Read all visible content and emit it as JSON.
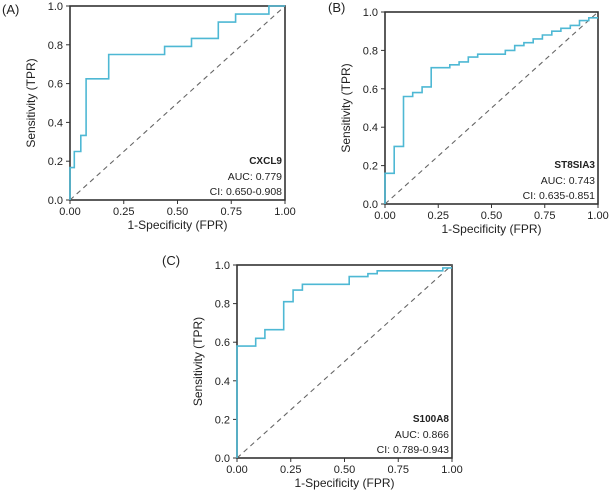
{
  "chart_data": [
    {
      "type": "line",
      "panel_label": "(A)",
      "title": "",
      "xlabel": "1-Specificity (FPR)",
      "ylabel": "Sensitivity (TPR)",
      "xlim": [
        0,
        1
      ],
      "ylim": [
        0,
        1
      ],
      "xticks": [
        "0.00",
        "0.25",
        "0.50",
        "0.75",
        "1.00"
      ],
      "yticks": [
        "0.0",
        "0.2",
        "0.4",
        "0.6",
        "0.8",
        "1.0"
      ],
      "grid": false,
      "reference_line": "diagonal dashed",
      "annotation": {
        "marker": "CXCL9",
        "auc": "AUC: 0.779",
        "ci": "CI: 0.650-0.908",
        "placement": "bottom-right"
      },
      "series": [
        {
          "name": "CXCL9",
          "color": "#4eb8d4",
          "x": [
            0.0,
            0.0,
            0.02,
            0.02,
            0.05,
            0.05,
            0.075,
            0.075,
            0.18,
            0.18,
            0.44,
            0.44,
            0.565,
            0.565,
            0.69,
            0.69,
            0.77,
            0.77,
            0.925,
            0.925,
            1.0
          ],
          "y": [
            0.0,
            0.167,
            0.167,
            0.25,
            0.25,
            0.333,
            0.333,
            0.625,
            0.625,
            0.75,
            0.75,
            0.792,
            0.792,
            0.833,
            0.833,
            0.917,
            0.917,
            0.958,
            0.958,
            1.0,
            1.0
          ]
        }
      ]
    },
    {
      "type": "line",
      "panel_label": "(B)",
      "title": "",
      "xlabel": "1-Specificity (FPR)",
      "ylabel": "Sensitivity (TPR)",
      "xlim": [
        0,
        1
      ],
      "ylim": [
        0,
        1
      ],
      "xticks": [
        "0.00",
        "0.25",
        "0.50",
        "0.75",
        "1.00"
      ],
      "yticks": [
        "0.0",
        "0.2",
        "0.4",
        "0.6",
        "0.8",
        "1.0"
      ],
      "grid": false,
      "reference_line": "diagonal dashed",
      "annotation": {
        "marker": "ST8SIA3",
        "auc": "AUC: 0.743",
        "ci": "CI: 0.635-0.851",
        "placement": "bottom-right"
      },
      "series": [
        {
          "name": "ST8SIA3",
          "color": "#4eb8d4",
          "x": [
            0.0,
            0.0,
            0.043,
            0.043,
            0.087,
            0.087,
            0.13,
            0.13,
            0.174,
            0.174,
            0.217,
            0.217,
            0.304,
            0.304,
            0.348,
            0.348,
            0.391,
            0.391,
            0.435,
            0.435,
            0.565,
            0.565,
            0.609,
            0.609,
            0.652,
            0.652,
            0.696,
            0.696,
            0.739,
            0.739,
            0.783,
            0.783,
            0.826,
            0.826,
            0.87,
            0.87,
            0.913,
            0.913,
            0.957,
            0.957,
            1.0
          ],
          "y": [
            0.0,
            0.16,
            0.16,
            0.3,
            0.3,
            0.56,
            0.56,
            0.58,
            0.58,
            0.61,
            0.61,
            0.71,
            0.71,
            0.725,
            0.725,
            0.74,
            0.74,
            0.765,
            0.765,
            0.78,
            0.78,
            0.8,
            0.8,
            0.825,
            0.825,
            0.84,
            0.84,
            0.86,
            0.86,
            0.88,
            0.88,
            0.9,
            0.9,
            0.915,
            0.915,
            0.93,
            0.93,
            0.955,
            0.955,
            0.97,
            0.97
          ]
        }
      ]
    },
    {
      "type": "line",
      "panel_label": "(C)",
      "title": "",
      "xlabel": "1-Specificity (FPR)",
      "ylabel": "Sensitivity (TPR)",
      "xlim": [
        0,
        1
      ],
      "ylim": [
        0,
        1
      ],
      "xticks": [
        "0.00",
        "0.25",
        "0.50",
        "0.75",
        "1.00"
      ],
      "yticks": [
        "0.0",
        "0.2",
        "0.4",
        "0.6",
        "0.8",
        "1.0"
      ],
      "grid": false,
      "reference_line": "diagonal dashed",
      "annotation": {
        "marker": "S100A8",
        "auc": "AUC: 0.866",
        "ci": "CI: 0.789-0.943",
        "placement": "bottom-right"
      },
      "series": [
        {
          "name": "S100A8",
          "color": "#4eb8d4",
          "x": [
            0.0,
            0.0,
            0.087,
            0.087,
            0.13,
            0.13,
            0.217,
            0.217,
            0.261,
            0.261,
            0.304,
            0.304,
            0.522,
            0.522,
            0.609,
            0.609,
            0.652,
            0.652,
            0.957,
            0.957,
            1.0
          ],
          "y": [
            0.0,
            0.58,
            0.58,
            0.62,
            0.62,
            0.665,
            0.665,
            0.81,
            0.81,
            0.87,
            0.87,
            0.9,
            0.9,
            0.94,
            0.94,
            0.955,
            0.955,
            0.97,
            0.97,
            0.985,
            0.985
          ]
        }
      ]
    }
  ]
}
